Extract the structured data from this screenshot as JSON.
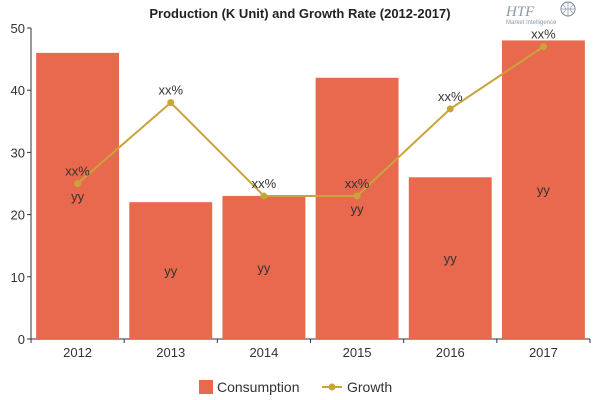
{
  "logo": {
    "text": "HTF",
    "subtext": "Market Intelligence"
  },
  "chart_data": {
    "type": "bar",
    "title": "Production (K Unit) and Growth Rate (2012-2017)",
    "categories": [
      "2012",
      "2013",
      "2014",
      "2015",
      "2016",
      "2017"
    ],
    "ylim": [
      0,
      50
    ],
    "yticks": [
      0,
      10,
      20,
      30,
      40,
      50
    ],
    "grid": false,
    "legend_position": "bottom-center",
    "series": [
      {
        "name": "Consumption",
        "type": "bar",
        "color": "#e8694e",
        "values": [
          46,
          22,
          23,
          42,
          26,
          48
        ],
        "labels": [
          "yy",
          "yy",
          "yy",
          "yy",
          "yy",
          "yy"
        ]
      },
      {
        "name": "Growth",
        "type": "line",
        "color": "#c9a43a",
        "values": [
          25,
          38,
          23,
          23,
          37,
          47
        ],
        "labels": [
          "xx%",
          "xx%",
          "xx%",
          "xx%",
          "xx%",
          "xx%"
        ]
      }
    ]
  }
}
